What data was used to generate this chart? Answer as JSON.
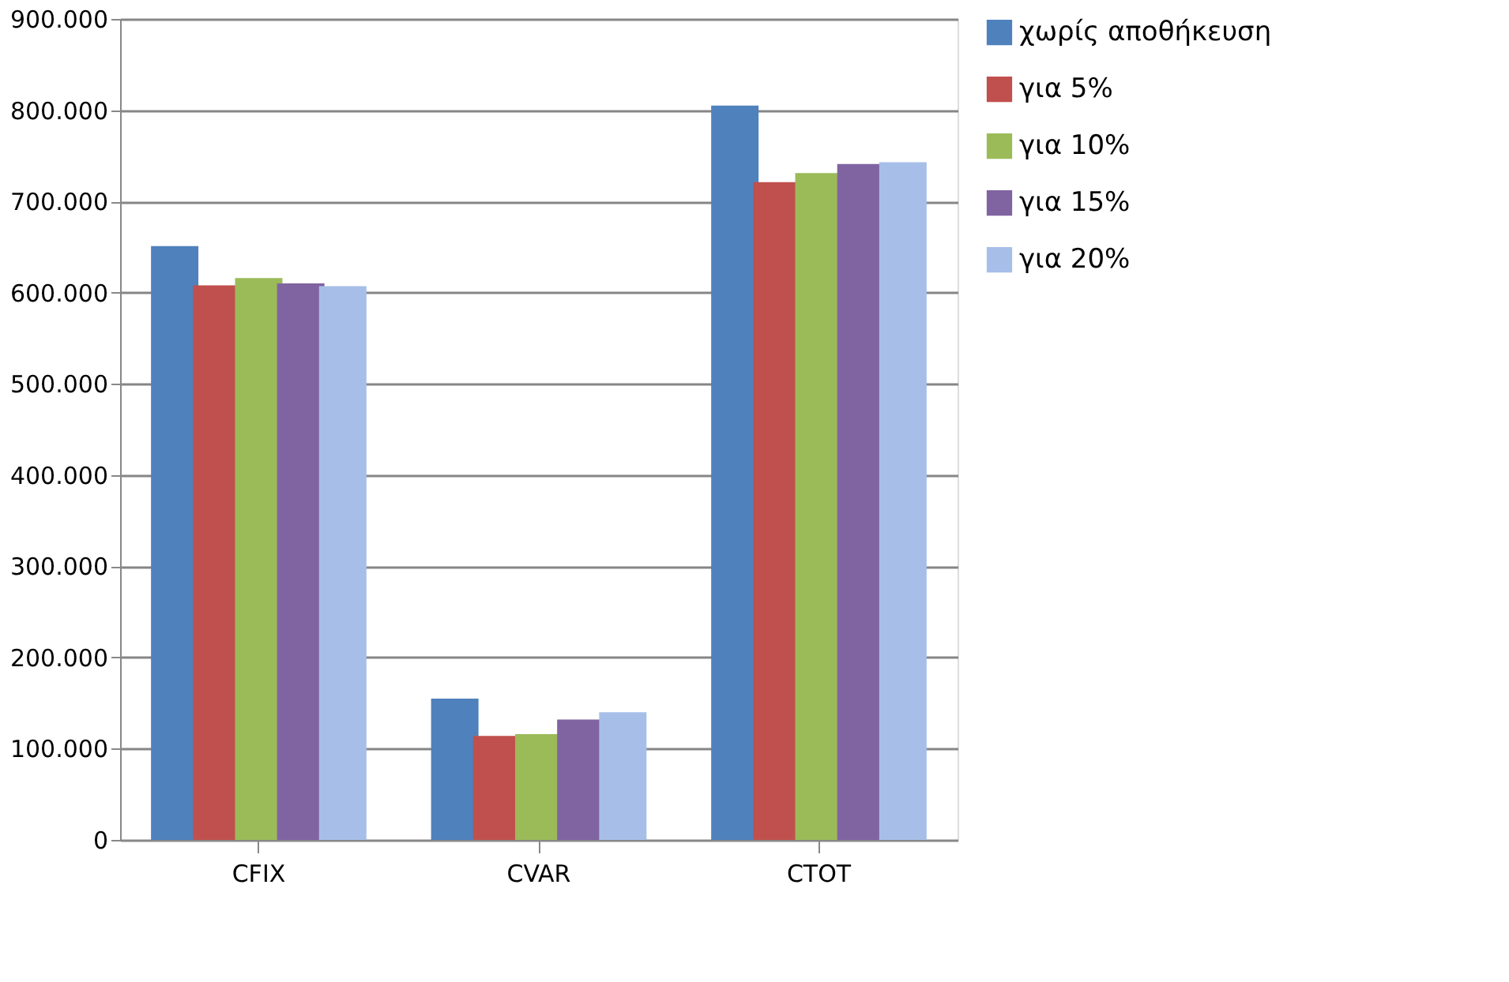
{
  "chart_data": {
    "type": "bar",
    "categories": [
      "CFIX",
      "CVAR",
      "CTOT"
    ],
    "series": [
      {
        "name": "χωρίς αποθήκευση",
        "color": "#4f81bd",
        "values": [
          651000,
          155000,
          805000
        ]
      },
      {
        "name": "για 5%",
        "color": "#c0504d",
        "values": [
          608000,
          114000,
          721000
        ]
      },
      {
        "name": "για 10%",
        "color": "#9bbb59",
        "values": [
          616000,
          116000,
          731000
        ]
      },
      {
        "name": "για 15%",
        "color": "#8064a2",
        "values": [
          610000,
          132000,
          741000
        ]
      },
      {
        "name": "για 20%",
        "color": "#a7bfe8",
        "values": [
          607000,
          140000,
          743000
        ]
      }
    ],
    "ylim": [
      0,
      900000
    ],
    "yticks": [
      0,
      {
        "value": 100000,
        "label": "100.000"
      },
      {
        "value": 200000,
        "label": "200.000"
      },
      {
        "value": 300000,
        "label": "300.000"
      },
      {
        "value": 400000,
        "label": "400.000"
      },
      {
        "value": 500000,
        "label": "500.000"
      },
      {
        "value": 600000,
        "label": "600.000"
      },
      {
        "value": 700000,
        "label": "700.000"
      },
      {
        "value": 800000,
        "label": "800.000"
      },
      {
        "value": 900000,
        "label": "900.000"
      }
    ],
    "grid": "y",
    "legend": "right"
  }
}
